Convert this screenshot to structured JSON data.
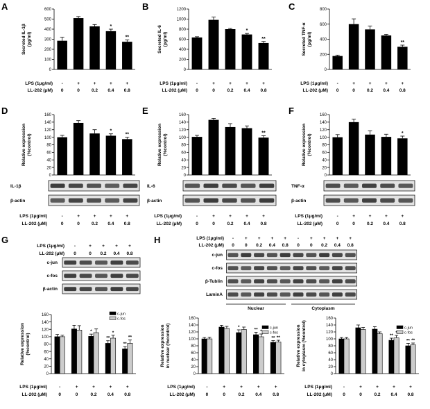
{
  "chart_data": [
    {
      "panel": "A",
      "type": "bar",
      "ylabel": "Secreted IL-1β (pg/ml)",
      "ylim": [
        0,
        600
      ],
      "yticks": [
        0,
        100,
        200,
        300,
        400,
        500,
        600
      ],
      "values": [
        285,
        510,
        428,
        380,
        275
      ],
      "errors": [
        35,
        15,
        18,
        20,
        18
      ],
      "sig": [
        "",
        "",
        "",
        "*",
        "**"
      ],
      "rows": [
        {
          "label": "LPS (1μg/ml)",
          "values": [
            "-",
            "+",
            "+",
            "+",
            "+"
          ]
        },
        {
          "label": "LL-202 (μM)",
          "values": [
            "0",
            "0",
            "0.2",
            "0.4",
            "0.8"
          ]
        }
      ]
    },
    {
      "panel": "B",
      "type": "bar",
      "ylabel": "Secreted IL-6 (pg/ml)",
      "ylim": [
        0,
        1200
      ],
      "yticks": [
        0,
        200,
        400,
        600,
        800,
        1000,
        1200
      ],
      "values": [
        635,
        985,
        800,
        695,
        525
      ],
      "errors": [
        15,
        55,
        15,
        20,
        30
      ],
      "sig": [
        "",
        "",
        "",
        "*",
        "**"
      ],
      "rows": [
        {
          "label": "LPS (1μg/ml)",
          "values": [
            "-",
            "+",
            "+",
            "+",
            "+"
          ]
        },
        {
          "label": "LL-202 (μM)",
          "values": [
            "0",
            "0",
            "0.2",
            "0.4",
            "0.8"
          ]
        }
      ]
    },
    {
      "panel": "C",
      "type": "bar",
      "ylabel": "Secreted TNF-α (pg/ml)",
      "ylim": [
        0,
        800
      ],
      "yticks": [
        0,
        200,
        400,
        600,
        800
      ],
      "values": [
        178,
        600,
        530,
        450,
        300
      ],
      "errors": [
        12,
        70,
        45,
        15,
        22
      ],
      "sig": [
        "",
        "",
        "",
        "",
        "**"
      ],
      "rows": [
        {
          "label": "LPS (1μg/ml)",
          "values": [
            "-",
            "+",
            "+",
            "+",
            "+"
          ]
        },
        {
          "label": "LL-202 (μM)",
          "values": [
            "0",
            "0",
            "0.2",
            "0.4",
            "0.8"
          ]
        }
      ]
    },
    {
      "panel": "D",
      "type": "bar",
      "ylabel": "Relative expression (%control)",
      "ylim": [
        0,
        160
      ],
      "yticks": [
        0,
        20,
        40,
        60,
        80,
        100,
        120,
        140,
        160
      ],
      "values": [
        100,
        138,
        110,
        104,
        95
      ],
      "errors": [
        5,
        6,
        10,
        5,
        5
      ],
      "sig": [
        "",
        "",
        "",
        "*",
        "**"
      ],
      "blots": [
        "IL-1β",
        "β-actin"
      ],
      "rows": [
        {
          "label": "LPS (1μg/ml)",
          "values": [
            "-",
            "+",
            "+",
            "+",
            "+"
          ]
        },
        {
          "label": "LL-202 (μM)",
          "values": [
            "0",
            "0",
            "0.2",
            "0.4",
            "0.8"
          ]
        }
      ]
    },
    {
      "panel": "E",
      "type": "bar",
      "ylabel": "Relative expression (%control)",
      "ylim": [
        0,
        160
      ],
      "yticks": [
        0,
        20,
        40,
        60,
        80,
        100,
        120,
        140,
        160
      ],
      "values": [
        101,
        146,
        127,
        124,
        99
      ],
      "errors": [
        4,
        4,
        9,
        6,
        5
      ],
      "sig": [
        "",
        "",
        "",
        "",
        "**"
      ],
      "blots": [
        "IL-6",
        "β-actin"
      ],
      "rows": [
        {
          "label": "LPS (1μg/ml)",
          "values": [
            "-",
            "+",
            "+",
            "+",
            "+"
          ]
        },
        {
          "label": "LL-202 (μM)",
          "values": [
            "0",
            "0",
            "0.2",
            "0.4",
            "0.8"
          ]
        }
      ]
    },
    {
      "panel": "F",
      "type": "bar",
      "ylabel": "Relative expression (%control)",
      "ylim": [
        0,
        160
      ],
      "yticks": [
        0,
        20,
        40,
        60,
        80,
        100,
        120,
        140,
        160
      ],
      "values": [
        100,
        140,
        107,
        101,
        97
      ],
      "errors": [
        7,
        8,
        10,
        7,
        6
      ],
      "sig": [
        "",
        "",
        "",
        "",
        "*"
      ],
      "blots": [
        "TNF-α",
        "β-actin"
      ],
      "rows": [
        {
          "label": "LPS (1μg/ml)",
          "values": [
            "-",
            "+",
            "+",
            "+",
            "+"
          ]
        },
        {
          "label": "LL-202 (μM)",
          "values": [
            "0",
            "0",
            "0.2",
            "0.4",
            "0.8"
          ]
        }
      ]
    },
    {
      "panel": "G",
      "type": "bar",
      "ylabel": "Relative expression (%control)",
      "ylim": [
        0,
        160
      ],
      "yticks": [
        0,
        20,
        40,
        60,
        80,
        100,
        120,
        140,
        160
      ],
      "series": [
        {
          "name": "c-jun",
          "color": "#000000",
          "values": [
            100,
            121,
            101,
            82,
            67
          ],
          "errors": [
            6,
            10,
            6,
            7,
            6
          ],
          "sig": [
            "",
            "",
            "*",
            "**",
            "**"
          ]
        },
        {
          "name": "c-fos",
          "color": "#cccccc",
          "values": [
            100,
            118,
            111,
            96,
            82
          ],
          "errors": [
            4,
            12,
            10,
            8,
            9
          ],
          "sig": [
            "",
            "",
            "",
            "*",
            "**"
          ]
        }
      ],
      "blots": [
        "c-jun",
        "c-fos",
        "β-actin"
      ],
      "blot_rows": [
        {
          "label": "LPS (1μg/ml)",
          "values": [
            "-",
            "+",
            "+",
            "+",
            "+"
          ]
        },
        {
          "label": "LL-202 (μM)",
          "values": [
            "0",
            "0",
            "0.2",
            "0.4",
            "0.8"
          ]
        }
      ],
      "rows": [
        {
          "label": "LPS (1μg/ml)",
          "values": [
            "-",
            "+",
            "+",
            "+",
            "+"
          ]
        },
        {
          "label": "LL-202 (μM)",
          "values": [
            "0",
            "0",
            "0.2",
            "0.4",
            "0.8"
          ]
        }
      ]
    },
    {
      "panel": "H",
      "type": "bar",
      "blots": [
        "c-jun",
        "c-fos",
        "β-Tublin",
        "LaminA"
      ],
      "blot_rows": [
        {
          "label": "LPS (1μg/ml)",
          "values": [
            "-",
            "+",
            "+",
            "+",
            "+",
            "-",
            "+",
            "+",
            "+",
            "+"
          ]
        },
        {
          "label": "LL-202 (μM)",
          "values": [
            "0",
            "0",
            "0.2",
            "0.4",
            "0.8",
            "0",
            "0",
            "0.2",
            "0.4",
            "0.8"
          ]
        }
      ],
      "fractions": [
        "Nuclear",
        "Cytoplasm"
      ],
      "charts": [
        {
          "ylabel": "Relative expression in nuclear (%control)",
          "ylim": [
            0,
            160
          ],
          "yticks": [
            0,
            20,
            40,
            60,
            80,
            100,
            120,
            140,
            160
          ],
          "series": [
            {
              "name": "c-jun",
              "color": "#000000",
              "values": [
                100,
                134,
                118,
                112,
                90
              ],
              "errors": [
                4,
                5,
                8,
                7,
                5
              ],
              "sig": [
                "",
                "",
                "*",
                "**",
                "**"
              ]
            },
            {
              "name": "c-fos",
              "color": "#cccccc",
              "values": [
                100,
                130,
                127,
                106,
                91
              ],
              "errors": [
                5,
                6,
                7,
                8,
                5
              ],
              "sig": [
                "",
                "",
                "",
                "*",
                "**"
              ]
            }
          ],
          "rows": [
            {
              "label": "LPS (1μg/ml)",
              "values": [
                "-",
                "+",
                "+",
                "+",
                "+"
              ]
            },
            {
              "label": "LL-202 (μM)",
              "values": [
                "0",
                "0",
                "0.2",
                "0.4",
                "0.8"
              ]
            }
          ]
        },
        {
          "ylabel": "Relative expression in cytoplasm (%control)",
          "ylim": [
            0,
            160
          ],
          "yticks": [
            0,
            20,
            40,
            60,
            80,
            100,
            120,
            140,
            160
          ],
          "series": [
            {
              "name": "c-jun",
              "color": "#000000",
              "values": [
                100,
                132,
                128,
                96,
                80
              ],
              "errors": [
                4,
                8,
                7,
                6,
                7
              ],
              "sig": [
                "",
                "",
                "",
                "**",
                "**"
              ]
            },
            {
              "name": "c-fos",
              "color": "#cccccc",
              "values": [
                100,
                127,
                115,
                103,
                83
              ],
              "errors": [
                4,
                6,
                5,
                7,
                5
              ],
              "sig": [
                "",
                "",
                "",
                "*",
                "**"
              ]
            }
          ],
          "rows": [
            {
              "label": "LPS (1μg/ml)",
              "values": [
                "-",
                "+",
                "+",
                "+",
                "+"
              ]
            },
            {
              "label": "LL-202 (μM)",
              "values": [
                "0",
                "0",
                "0.2",
                "0.4",
                "0.8"
              ]
            }
          ]
        }
      ]
    }
  ]
}
